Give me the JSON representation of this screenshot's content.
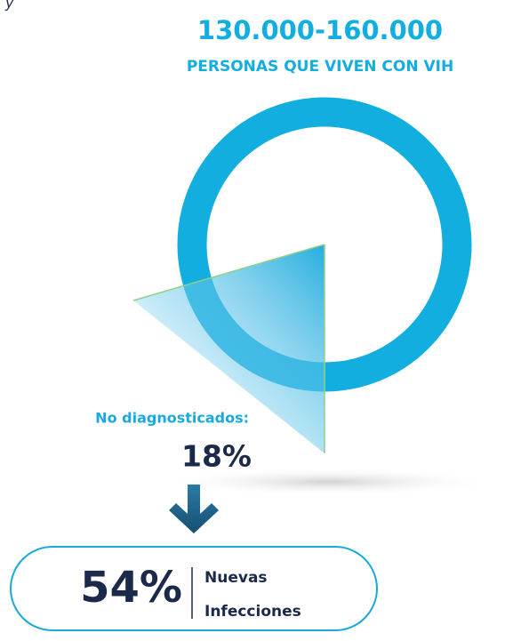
{
  "fragment": "y",
  "header": {
    "range": "130.000-160.000",
    "subtitle": "PERSONAS QUE VIVEN CON VIH"
  },
  "undiagnosed": {
    "label": "No diagnosticados:",
    "value": "18%"
  },
  "new_infections": {
    "value": "54%",
    "label_line1": "Nuevas",
    "label_line2": "Infecciones"
  }
}
